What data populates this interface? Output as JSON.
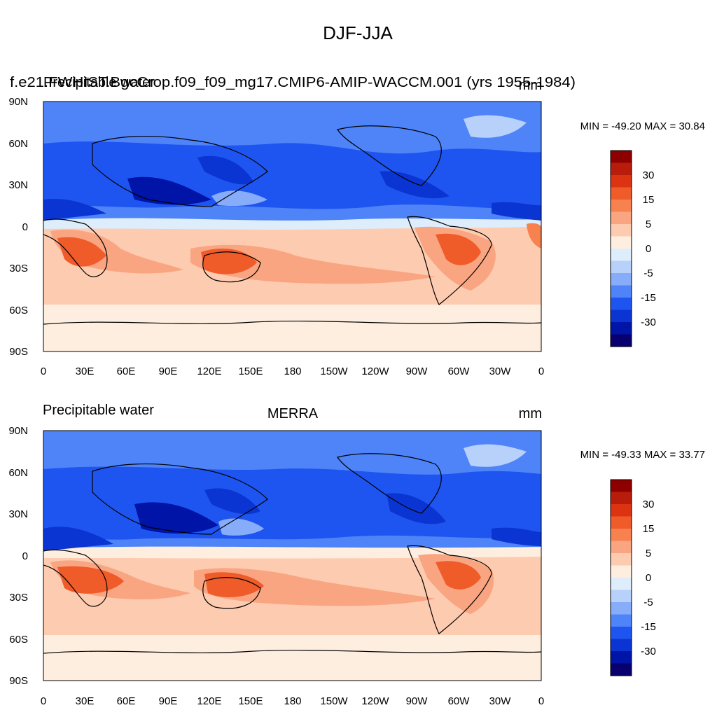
{
  "figure": {
    "title": "DJF-JJA"
  },
  "colors": {
    "frame": "#000000",
    "coastline": "#000000"
  },
  "colorbar": {
    "colors": [
      "#08006E",
      "#0014A8",
      "#0A35D2",
      "#1E55F0",
      "#4F83F8",
      "#87ACFA",
      "#B8D1FB",
      "#DDEDFB",
      "#FEEEE0",
      "#FDCBB0",
      "#F9A581",
      "#F7824F",
      "#F05B2A",
      "#DC3412",
      "#B81D0B",
      "#8E0000"
    ],
    "tick_labels": [
      "30",
      "15",
      "5",
      "0",
      "-5",
      "-15",
      "-30"
    ]
  },
  "panels": [
    {
      "title_left": "Precipitable water",
      "title_center": "f.e21.FWHIST.BgcCrop.f09_f09_mg17.CMIP6-AMIP-WACCM.001 (yrs 1955-1984)",
      "title_right": "mm",
      "stats": "MIN = -49.20 MAX =  30.84",
      "lat_labels": [
        "90N",
        "60N",
        "30N",
        "0",
        "30S",
        "60S",
        "90S"
      ],
      "lon_labels": [
        "0",
        "30E",
        "60E",
        "90E",
        "120E",
        "150E",
        "180",
        "150W",
        "120W",
        "90W",
        "60W",
        "30W",
        "0"
      ]
    },
    {
      "title_left": "Precipitable water",
      "title_center": "MERRA",
      "title_right": "mm",
      "stats": "MIN = -49.33 MAX =  33.77",
      "lat_labels": [
        "90N",
        "60N",
        "30N",
        "0",
        "30S",
        "60S",
        "90S"
      ],
      "lon_labels": [
        "0",
        "30E",
        "60E",
        "90E",
        "120E",
        "150E",
        "180",
        "150W",
        "120W",
        "90W",
        "60W",
        "30W",
        "0"
      ]
    }
  ]
}
